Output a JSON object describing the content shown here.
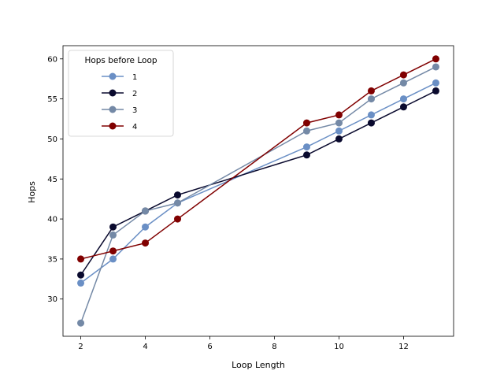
{
  "chart_data": {
    "type": "line",
    "title": "",
    "xlabel": "Loop Length",
    "ylabel": "Hops",
    "xlim": [
      1.45,
      13.55
    ],
    "ylim": [
      25.35,
      61.65
    ],
    "xticks": [
      2,
      4,
      6,
      8,
      10,
      12
    ],
    "yticks": [
      30,
      35,
      40,
      45,
      50,
      55,
      60
    ],
    "grid": false,
    "legend": {
      "title": "Hops before Loop",
      "placement": "top-left"
    },
    "x": [
      2,
      3,
      4,
      5,
      9,
      10,
      11,
      12,
      13
    ],
    "series": [
      {
        "name": "1",
        "color": "#6a8fc5",
        "values": [
          32,
          35,
          39,
          42,
          49,
          51,
          53,
          55,
          57
        ]
      },
      {
        "name": "2",
        "color": "#0a0a2e",
        "values": [
          33,
          39,
          41,
          43,
          48,
          50,
          52,
          54,
          56
        ]
      },
      {
        "name": "3",
        "color": "#7489a6",
        "values": [
          27,
          38,
          41,
          42,
          51,
          52,
          55,
          57,
          59
        ]
      },
      {
        "name": "4",
        "color": "#800000",
        "values": [
          35,
          36,
          37,
          40,
          52,
          53,
          56,
          58,
          60
        ]
      }
    ]
  }
}
